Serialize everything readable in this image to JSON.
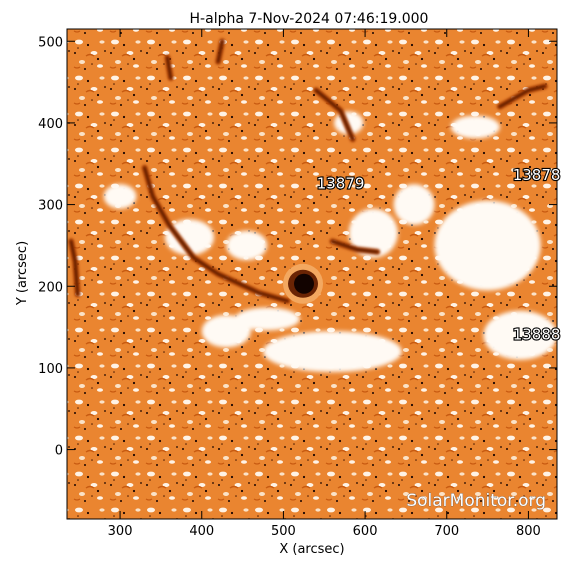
{
  "chart_data": {
    "type": "heatmap",
    "title": "H-alpha   7-Nov-2024 07:46:19.000",
    "xlabel": "X (arcsec)",
    "ylabel": "Y (arcsec)",
    "xlim": [
      235,
      835
    ],
    "ylim": [
      -85,
      515
    ],
    "xticks": [
      300,
      400,
      500,
      600,
      700,
      800
    ],
    "yticks": [
      0,
      100,
      200,
      300,
      400,
      500
    ],
    "colormap": [
      "#ffffff",
      "#f6c08c",
      "#ea8530",
      "#d46010",
      "#8a3004",
      "#1a0500"
    ],
    "regions": [
      {
        "label": "13879",
        "x": 570,
        "y": 320
      },
      {
        "label": "13878",
        "x": 810,
        "y": 330
      },
      {
        "label": "13888",
        "x": 810,
        "y": 135
      }
    ],
    "features": {
      "sunspot": {
        "x": 524,
        "y": 203
      },
      "bright_plage": [
        {
          "x": 560,
          "y": 120,
          "rx": 85,
          "ry": 25
        },
        {
          "x": 430,
          "y": 145,
          "rx": 30,
          "ry": 20
        },
        {
          "x": 480,
          "y": 160,
          "rx": 40,
          "ry": 14
        },
        {
          "x": 750,
          "y": 250,
          "rx": 65,
          "ry": 55
        },
        {
          "x": 790,
          "y": 140,
          "rx": 45,
          "ry": 30
        },
        {
          "x": 610,
          "y": 265,
          "rx": 30,
          "ry": 30
        },
        {
          "x": 660,
          "y": 300,
          "rx": 25,
          "ry": 25
        },
        {
          "x": 385,
          "y": 260,
          "rx": 30,
          "ry": 22
        },
        {
          "x": 455,
          "y": 250,
          "rx": 25,
          "ry": 18
        },
        {
          "x": 735,
          "y": 395,
          "rx": 30,
          "ry": 14
        },
        {
          "x": 300,
          "y": 310,
          "rx": 20,
          "ry": 15
        },
        {
          "x": 580,
          "y": 400,
          "rx": 18,
          "ry": 14
        }
      ],
      "filaments": [
        {
          "points": [
            [
              330,
              345
            ],
            [
              340,
              310
            ],
            [
              360,
              275
            ],
            [
              390,
              235
            ],
            [
              420,
              215
            ],
            [
              470,
              192
            ],
            [
              505,
              182
            ]
          ]
        },
        {
          "points": [
            [
              540,
              440
            ],
            [
              570,
              415
            ],
            [
              585,
              380
            ]
          ]
        },
        {
          "points": [
            [
              765,
              420
            ],
            [
              800,
              440
            ],
            [
              820,
              445
            ]
          ]
        },
        {
          "points": [
            [
              240,
              255
            ],
            [
              245,
              230
            ],
            [
              248,
              190
            ]
          ]
        },
        {
          "points": [
            [
              425,
              500
            ],
            [
              420,
              475
            ]
          ]
        },
        {
          "points": [
            [
              358,
              480
            ],
            [
              362,
              455
            ]
          ]
        },
        {
          "points": [
            [
              560,
              255
            ],
            [
              590,
              245
            ],
            [
              615,
              242
            ]
          ]
        }
      ]
    }
  },
  "watermark": "SolarMonitor.org"
}
